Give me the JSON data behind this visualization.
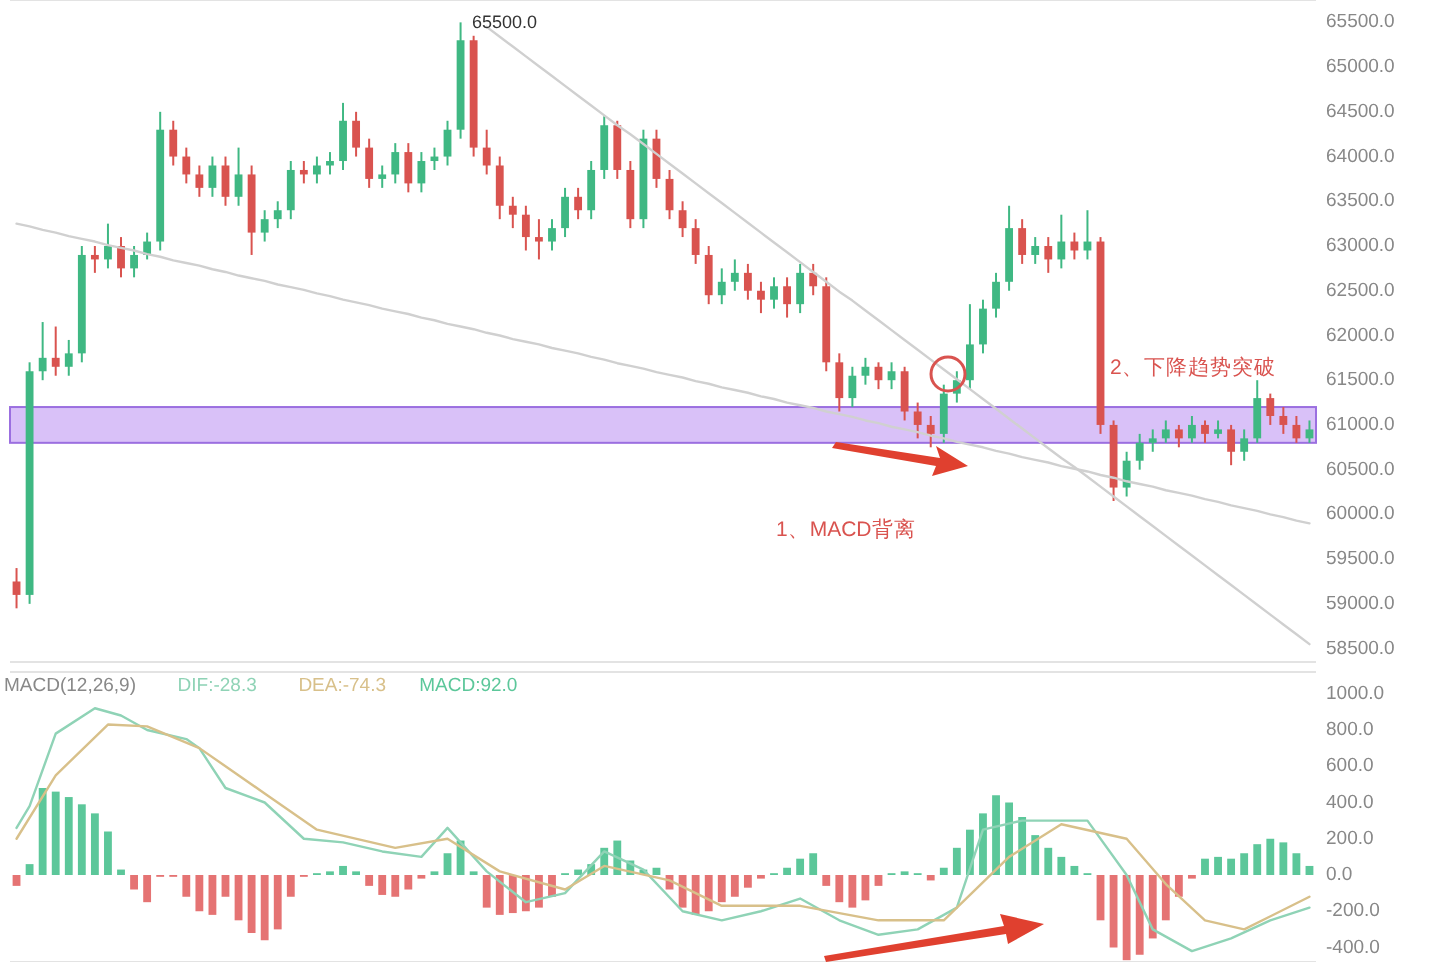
{
  "chart_data": [
    {
      "type": "candlestick",
      "categories": [
        null,
        null,
        null,
        null,
        null,
        null,
        null,
        null,
        null,
        null,
        null,
        null,
        null,
        null,
        null,
        null,
        null,
        null,
        null,
        null,
        null,
        null,
        null,
        null,
        null,
        null,
        null,
        null,
        null,
        null,
        null,
        null,
        null,
        null,
        null,
        null,
        null,
        null,
        null,
        null,
        null,
        null,
        null,
        null,
        null,
        null,
        null,
        null,
        null,
        null,
        null,
        null,
        null,
        null,
        null,
        null,
        null,
        null,
        null,
        null,
        null,
        null,
        null,
        null,
        null,
        null,
        null,
        null,
        null,
        null,
        null,
        null,
        null,
        null,
        null,
        null,
        null,
        null,
        null,
        null,
        null,
        null,
        null,
        null,
        null,
        null,
        null,
        null,
        null,
        null,
        null,
        null,
        null,
        null,
        null,
        null,
        null,
        null,
        null,
        null
      ],
      "ohlc": [
        [
          59250,
          59400,
          58950,
          59100
        ],
        [
          59100,
          61700,
          59000,
          61600
        ],
        [
          61600,
          62150,
          61500,
          61750
        ],
        [
          61750,
          62100,
          61550,
          61650
        ],
        [
          61650,
          61950,
          61550,
          61800
        ],
        [
          61800,
          63000,
          61700,
          62900
        ],
        [
          62900,
          63000,
          62700,
          62850
        ],
        [
          62850,
          63250,
          62750,
          63000
        ],
        [
          63000,
          63100,
          62650,
          62750
        ],
        [
          62750,
          63000,
          62650,
          62900
        ],
        [
          62900,
          63150,
          62850,
          63050
        ],
        [
          63050,
          64500,
          62950,
          64300
        ],
        [
          64300,
          64400,
          63900,
          64000
        ],
        [
          64000,
          64100,
          63700,
          63800
        ],
        [
          63800,
          63900,
          63550,
          63650
        ],
        [
          63650,
          64000,
          63550,
          63900
        ],
        [
          63900,
          64000,
          63450,
          63550
        ],
        [
          63550,
          64100,
          63450,
          63800
        ],
        [
          63800,
          63900,
          62900,
          63150
        ],
        [
          63150,
          63400,
          63050,
          63300
        ],
        [
          63300,
          63500,
          63200,
          63400
        ],
        [
          63400,
          63950,
          63300,
          63850
        ],
        [
          63850,
          63950,
          63700,
          63800
        ],
        [
          63800,
          64000,
          63700,
          63900
        ],
        [
          63900,
          64050,
          63800,
          63950
        ],
        [
          63950,
          64600,
          63850,
          64400
        ],
        [
          64400,
          64500,
          64000,
          64100
        ],
        [
          64100,
          64200,
          63650,
          63750
        ],
        [
          63750,
          63900,
          63650,
          63800
        ],
        [
          63800,
          64150,
          63700,
          64050
        ],
        [
          64050,
          64150,
          63600,
          63700
        ],
        [
          63700,
          64050,
          63600,
          63950
        ],
        [
          63950,
          64100,
          63850,
          64000
        ],
        [
          64000,
          64400,
          63900,
          64300
        ],
        [
          64300,
          65500,
          64200,
          65300
        ],
        [
          65300,
          65350,
          64000,
          64100
        ],
        [
          64100,
          64300,
          63800,
          63900
        ],
        [
          63900,
          64000,
          63300,
          63450
        ],
        [
          63450,
          63550,
          63200,
          63350
        ],
        [
          63350,
          63450,
          62950,
          63100
        ],
        [
          63100,
          63300,
          62850,
          63050
        ],
        [
          63050,
          63300,
          62950,
          63200
        ],
        [
          63200,
          63650,
          63100,
          63550
        ],
        [
          63550,
          63650,
          63300,
          63400
        ],
        [
          63400,
          63950,
          63300,
          63850
        ],
        [
          63850,
          64450,
          63750,
          64350
        ],
        [
          64350,
          64400,
          63750,
          63850
        ],
        [
          63850,
          63950,
          63200,
          63300
        ],
        [
          63300,
          64300,
          63200,
          64200
        ],
        [
          64200,
          64300,
          63650,
          63750
        ],
        [
          63750,
          63850,
          63300,
          63400
        ],
        [
          63400,
          63500,
          63100,
          63200
        ],
        [
          63200,
          63300,
          62800,
          62900
        ],
        [
          62900,
          63000,
          62350,
          62450
        ],
        [
          62450,
          62750,
          62350,
          62600
        ],
        [
          62600,
          62850,
          62500,
          62700
        ],
        [
          62700,
          62800,
          62400,
          62500
        ],
        [
          62500,
          62600,
          62250,
          62400
        ],
        [
          62400,
          62650,
          62300,
          62550
        ],
        [
          62550,
          62650,
          62200,
          62350
        ],
        [
          62350,
          62800,
          62250,
          62700
        ],
        [
          62700,
          62800,
          62450,
          62550
        ],
        [
          62550,
          62650,
          61600,
          61700
        ],
        [
          61700,
          61800,
          61150,
          61300
        ],
        [
          61300,
          61650,
          61200,
          61550
        ],
        [
          61550,
          61750,
          61450,
          61650
        ],
        [
          61650,
          61700,
          61400,
          61500
        ],
        [
          61500,
          61700,
          61400,
          61600
        ],
        [
          61600,
          61650,
          61050,
          61150
        ],
        [
          61150,
          61250,
          60850,
          61000
        ],
        [
          61000,
          61100,
          60750,
          60900
        ],
        [
          60900,
          61450,
          60800,
          61350
        ],
        [
          61350,
          61600,
          61250,
          61500
        ],
        [
          61500,
          62350,
          61400,
          61900
        ],
        [
          61900,
          62400,
          61800,
          62300
        ],
        [
          62300,
          62700,
          62200,
          62600
        ],
        [
          62600,
          63450,
          62500,
          63200
        ],
        [
          63200,
          63300,
          62800,
          62900
        ],
        [
          62900,
          63100,
          62800,
          63000
        ],
        [
          63000,
          63100,
          62700,
          62850
        ],
        [
          62850,
          63350,
          62750,
          63050
        ],
        [
          63050,
          63150,
          62850,
          62950
        ],
        [
          62950,
          63400,
          62850,
          63050
        ],
        [
          63050,
          63100,
          60900,
          61000
        ],
        [
          61000,
          61050,
          60150,
          60300
        ],
        [
          60300,
          60700,
          60200,
          60600
        ],
        [
          60600,
          60900,
          60500,
          60800
        ],
        [
          60800,
          60950,
          60700,
          60850
        ],
        [
          60850,
          61050,
          60800,
          60950
        ],
        [
          60950,
          61000,
          60750,
          60850
        ],
        [
          60850,
          61100,
          60800,
          61000
        ],
        [
          61000,
          61050,
          60800,
          60900
        ],
        [
          60900,
          61050,
          60850,
          60950
        ],
        [
          60950,
          61000,
          60550,
          60700
        ],
        [
          60700,
          60950,
          60600,
          60850
        ],
        [
          60850,
          61500,
          60800,
          61300
        ],
        [
          61300,
          61350,
          61000,
          61100
        ],
        [
          61100,
          61200,
          60900,
          61000
        ],
        [
          61000,
          61100,
          60800,
          60850
        ],
        [
          60850,
          61050,
          60800,
          60950
        ]
      ],
      "series": [
        {
          "type": "line",
          "color": "#d0d0d0",
          "values": [
            63250,
            63220,
            63180,
            63150,
            63110,
            63080,
            63050,
            63010,
            62980,
            62950,
            62910,
            62880,
            62840,
            62810,
            62780,
            62740,
            62710,
            62670,
            62640,
            62610,
            62570,
            62540,
            62510,
            62470,
            62440,
            62400,
            62370,
            62340,
            62300,
            62270,
            62240,
            62200,
            62170,
            62130,
            62100,
            62070,
            62030,
            62000,
            61960,
            61930,
            61900,
            61860,
            61830,
            61800,
            61760,
            61730,
            61690,
            61660,
            61630,
            61590,
            61560,
            61530,
            61490,
            61460,
            61420,
            61390,
            61360,
            61320,
            61290,
            61250,
            61220,
            61190,
            61150,
            61120,
            61090,
            61050,
            61020,
            60980,
            60950,
            60920,
            60880,
            60850,
            60810,
            60780,
            60750,
            60710,
            60680,
            60640,
            60610,
            60580,
            60540,
            60510,
            60480,
            60440,
            60410,
            60370,
            60340,
            60310,
            60270,
            60240,
            60210,
            60170,
            60140,
            60100,
            60070,
            60040,
            60000,
            59970,
            59930,
            59900
          ]
        },
        {
          "type": "line",
          "color": "#d0d0d0",
          "values": [
            null,
            null,
            null,
            null,
            null,
            null,
            null,
            null,
            null,
            null,
            null,
            null,
            null,
            null,
            null,
            null,
            null,
            null,
            null,
            null,
            null,
            null,
            null,
            null,
            null,
            null,
            null,
            null,
            null,
            null,
            null,
            null,
            null,
            null,
            null,
            null,
            65450,
            65340,
            65230,
            65120,
            65010,
            64900,
            64790,
            64680,
            64570,
            64460,
            64350,
            64250,
            64140,
            64030,
            63920,
            63810,
            63700,
            63590,
            63480,
            63370,
            63260,
            63150,
            63040,
            62930,
            62820,
            62710,
            62600,
            62490,
            62390,
            62280,
            62170,
            62060,
            61950,
            61840,
            61730,
            61620,
            61510,
            61400,
            61290,
            61180,
            61070,
            60960,
            60850,
            60740,
            60630,
            60530,
            60420,
            60310,
            60200,
            60090,
            59980,
            59870,
            59760,
            59650,
            59540,
            59430,
            59320,
            59210,
            59100,
            58990,
            58880,
            58770,
            58660,
            58550
          ]
        }
      ],
      "ylim": [
        58350,
        65750
      ],
      "yticks": [
        {
          "value": 58500,
          "label": "58500.0"
        },
        {
          "value": 59000,
          "label": "59000.0"
        },
        {
          "value": 59500,
          "label": "59500.0"
        },
        {
          "value": 60000,
          "label": "60000.0"
        },
        {
          "value": 60500,
          "label": "60500.0"
        },
        {
          "value": 61000,
          "label": "61000.0"
        },
        {
          "value": 61500,
          "label": "61500.0"
        },
        {
          "value": 62000,
          "label": "62000.0"
        },
        {
          "value": 62500,
          "label": "62500.0"
        },
        {
          "value": 63000,
          "label": "63000.0"
        },
        {
          "value": 63500,
          "label": "63500.0"
        },
        {
          "value": 64000,
          "label": "64000.0"
        },
        {
          "value": 64500,
          "label": "64500.0"
        },
        {
          "value": 65000,
          "label": "65000.0"
        },
        {
          "value": 65500,
          "label": "65500.0"
        }
      ],
      "tick_labels": "y",
      "bands": [
        {
          "axis": "y",
          "from": 60800,
          "to": 61200,
          "color": "#c9a6f5"
        }
      ],
      "annotations": [
        "65500.0",
        "1、MACD背离",
        "2、下降趋势突破"
      ]
    },
    {
      "type": "bar",
      "categories": [
        null,
        null,
        null,
        null,
        null,
        null,
        null,
        null,
        null,
        null,
        null,
        null,
        null,
        null,
        null,
        null,
        null,
        null,
        null,
        null,
        null,
        null,
        null,
        null,
        null,
        null,
        null,
        null,
        null,
        null,
        null,
        null,
        null,
        null,
        null,
        null,
        null,
        null,
        null,
        null,
        null,
        null,
        null,
        null,
        null,
        null,
        null,
        null,
        null,
        null,
        null,
        null,
        null,
        null,
        null,
        null,
        null,
        null,
        null,
        null,
        null,
        null,
        null,
        null,
        null,
        null,
        null,
        null,
        null,
        null,
        null,
        null,
        null,
        null,
        null,
        null,
        null,
        null,
        null,
        null,
        null,
        null,
        null,
        null,
        null,
        null,
        null,
        null,
        null,
        null,
        null,
        null,
        null,
        null,
        null,
        null,
        null,
        null,
        null,
        null
      ],
      "legend_title": "MACD(12,26,9)",
      "legend": "top left",
      "series": [
        {
          "type": "line",
          "name": "DIF:-28.3",
          "color": "#8fd3b6",
          "values": [
            260,
            380,
            null,
            780,
            null,
            null,
            920,
            null,
            880,
            null,
            800,
            null,
            null,
            750,
            700,
            null,
            480,
            null,
            null,
            400,
            null,
            null,
            200,
            null,
            null,
            180,
            null,
            null,
            130,
            null,
            null,
            100,
            null,
            260,
            null,
            null,
            20,
            null,
            null,
            -150,
            null,
            null,
            -100,
            null,
            null,
            130,
            null,
            null,
            30,
            null,
            null,
            -200,
            null,
            null,
            -250,
            null,
            null,
            -200,
            null,
            null,
            -130,
            null,
            null,
            -250,
            null,
            null,
            -330,
            null,
            null,
            -300,
            null,
            null,
            -180,
            null,
            250,
            null,
            null,
            300,
            null,
            null,
            null,
            null,
            300,
            null,
            null,
            0,
            null,
            -300,
            null,
            null,
            -420,
            null,
            null,
            -350,
            null,
            null,
            -250,
            null,
            null,
            -180
          ]
        },
        {
          "type": "line",
          "name": "DEA:-74.3",
          "color": "#d8c08a",
          "values": [
            200,
            null,
            null,
            550,
            null,
            null,
            null,
            830,
            null,
            null,
            820,
            null,
            null,
            null,
            700,
            null,
            null,
            null,
            null,
            450,
            null,
            null,
            null,
            250,
            null,
            null,
            null,
            null,
            null,
            150,
            null,
            null,
            null,
            200,
            null,
            null,
            null,
            20,
            null,
            null,
            null,
            null,
            -80,
            null,
            null,
            50,
            null,
            null,
            null,
            null,
            -30,
            null,
            null,
            null,
            -170,
            null,
            null,
            null,
            null,
            null,
            -170,
            null,
            null,
            null,
            null,
            null,
            -250,
            null,
            null,
            null,
            null,
            -250,
            null,
            null,
            null,
            null,
            100,
            null,
            null,
            null,
            280,
            null,
            null,
            null,
            null,
            200,
            null,
            null,
            -50,
            null,
            null,
            -250,
            null,
            null,
            -300,
            null,
            null,
            null,
            null,
            -120
          ]
        },
        {
          "type": "bar",
          "name": "MACD:92.0",
          "color": "#5cc79a",
          "values": [
            -60,
            60,
            480,
            460,
            430,
            390,
            340,
            240,
            30,
            -80,
            -150,
            -10,
            -10,
            -120,
            -200,
            -220,
            -120,
            -250,
            -320,
            -360,
            -300,
            -120,
            -10,
            10,
            20,
            50,
            20,
            -60,
            -110,
            -120,
            -80,
            -20,
            20,
            120,
            190,
            20,
            -180,
            -220,
            -210,
            -200,
            -180,
            -120,
            10,
            30,
            60,
            150,
            190,
            80,
            30,
            40,
            -80,
            -180,
            -220,
            -200,
            -150,
            -120,
            -70,
            -20,
            10,
            40,
            90,
            120,
            -60,
            -150,
            -180,
            -140,
            -60,
            10,
            20,
            10,
            -30,
            40,
            150,
            250,
            340,
            440,
            400,
            320,
            220,
            150,
            100,
            50,
            10,
            -250,
            -400,
            -470,
            -440,
            -350,
            -250,
            -120,
            -20,
            90,
            100,
            90,
            120,
            170,
            200,
            180,
            120,
            50
          ],
          "colors": [
            "#e57373",
            "#5cc79a",
            "#5cc79a",
            "#5cc79a",
            "#5cc79a",
            "#5cc79a",
            "#5cc79a",
            "#5cc79a",
            "#5cc79a",
            "#e57373",
            "#e57373",
            "#e57373",
            "#e57373",
            "#e57373",
            "#e57373",
            "#e57373",
            "#e57373",
            "#e57373",
            "#e57373",
            "#e57373",
            "#e57373",
            "#e57373",
            "#e57373",
            "#5cc79a",
            "#5cc79a",
            "#5cc79a",
            "#5cc79a",
            "#e57373",
            "#e57373",
            "#e57373",
            "#e57373",
            "#e57373",
            "#5cc79a",
            "#5cc79a",
            "#5cc79a",
            "#5cc79a",
            "#e57373",
            "#e57373",
            "#e57373",
            "#e57373",
            "#e57373",
            "#e57373",
            "#5cc79a",
            "#5cc79a",
            "#5cc79a",
            "#5cc79a",
            "#5cc79a",
            "#5cc79a",
            "#5cc79a",
            "#5cc79a",
            "#e57373",
            "#e57373",
            "#e57373",
            "#e57373",
            "#e57373",
            "#e57373",
            "#e57373",
            "#e57373",
            "#5cc79a",
            "#5cc79a",
            "#5cc79a",
            "#5cc79a",
            "#e57373",
            "#e57373",
            "#e57373",
            "#e57373",
            "#e57373",
            "#5cc79a",
            "#5cc79a",
            "#5cc79a",
            "#e57373",
            "#5cc79a",
            "#5cc79a",
            "#5cc79a",
            "#5cc79a",
            "#5cc79a",
            "#5cc79a",
            "#5cc79a",
            "#5cc79a",
            "#5cc79a",
            "#5cc79a",
            "#5cc79a",
            "#5cc79a",
            "#e57373",
            "#e57373",
            "#e57373",
            "#e57373",
            "#e57373",
            "#e57373",
            "#e57373",
            "#e57373",
            "#5cc79a",
            "#5cc79a",
            "#5cc79a",
            "#5cc79a",
            "#5cc79a",
            "#5cc79a",
            "#5cc79a",
            "#5cc79a",
            "#5cc79a"
          ]
        }
      ],
      "ylim": [
        -480,
        1120
      ],
      "yticks": [
        {
          "value": -400,
          "label": "-400.0"
        },
        {
          "value": -200,
          "label": "-200.0"
        },
        {
          "value": 0,
          "label": "0.0"
        },
        {
          "value": 200,
          "label": "200.0"
        },
        {
          "value": 400,
          "label": "400.0"
        },
        {
          "value": 600,
          "label": "600.0"
        },
        {
          "value": 800,
          "label": "800.0"
        },
        {
          "value": 1000,
          "label": "1000.0"
        }
      ],
      "tick_labels": "y"
    }
  ]
}
